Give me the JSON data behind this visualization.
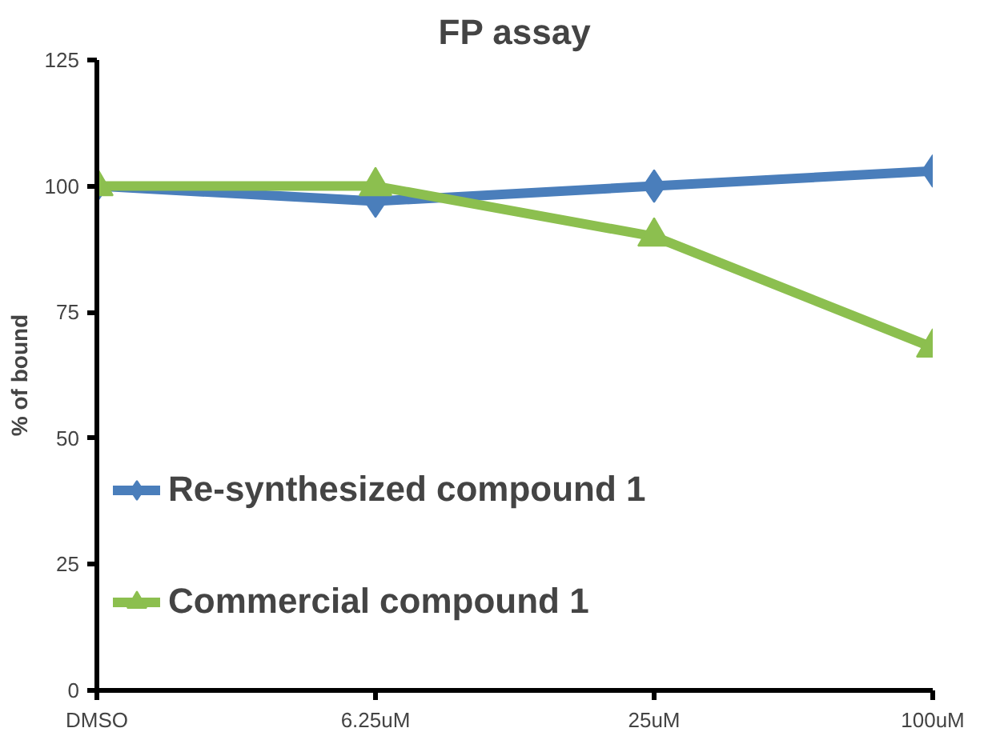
{
  "chart_data": {
    "type": "line",
    "title": "FP assay",
    "ylabel": "% of bound",
    "categories": [
      "DMSO",
      "6.25uM",
      "25uM",
      "100uM"
    ],
    "series": [
      {
        "name": "Re-synthesized compound 1",
        "color": "#4a7ebb",
        "marker": "diamond",
        "values": [
          100,
          97,
          100,
          103
        ]
      },
      {
        "name": "Commercial compound 1",
        "color": "#8cbf4f",
        "marker": "triangle",
        "values": [
          100,
          100,
          90,
          68
        ]
      }
    ],
    "ylim": [
      0,
      125
    ],
    "yticks": [
      0,
      25,
      50,
      75,
      100,
      125
    ],
    "grid": false,
    "legend": "left"
  }
}
